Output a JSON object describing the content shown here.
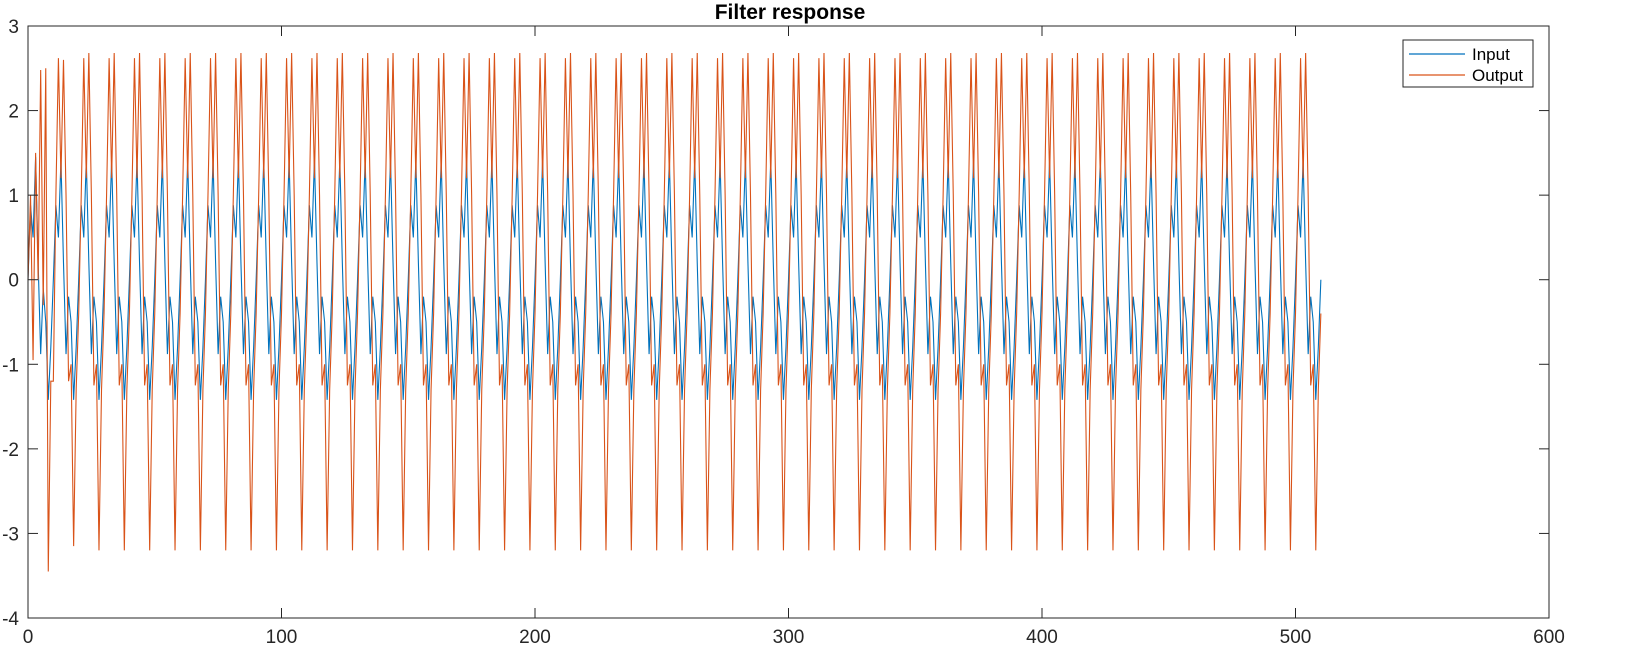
{
  "chart_data": {
    "type": "line",
    "title": "Filter response",
    "xlabel": "",
    "ylabel": "",
    "xlim": [
      0,
      600
    ],
    "ylim": [
      -4,
      3
    ],
    "xticks": [
      0,
      100,
      200,
      300,
      400,
      500,
      600
    ],
    "yticks": [
      -4,
      -3,
      -2,
      -1,
      0,
      1,
      2,
      3
    ],
    "xtick_labels": [
      "0",
      "100",
      "200",
      "300",
      "400",
      "500",
      "600"
    ],
    "ytick_labels": [
      "-4",
      "-3",
      "-2",
      "-1",
      "0",
      "1",
      "2",
      "3"
    ],
    "grid": false,
    "legend_position": "top-right",
    "period": 10,
    "n_samples": 511,
    "series": [
      {
        "name": "Input",
        "color": "#0072BD",
        "transient": [
          [
            0,
            0
          ],
          [
            1,
            0.88
          ],
          [
            2,
            0.5
          ],
          [
            3,
            1.45
          ],
          [
            4,
            0.2
          ],
          [
            5,
            -0.88
          ],
          [
            6,
            -0.1
          ],
          [
            7,
            -0.5
          ],
          [
            8,
            -1.42
          ],
          [
            9,
            -0.8
          ]
        ],
        "cycle": [
          0,
          0.88,
          0.5,
          1.42,
          0.2,
          -0.88,
          -0.2,
          -0.5,
          -1.42,
          -0.8
        ]
      },
      {
        "name": "Output",
        "color": "#D95319",
        "transient": [
          [
            0,
            0
          ],
          [
            1,
            1.0
          ],
          [
            2,
            -0.95
          ],
          [
            3,
            1.5
          ],
          [
            4,
            0.0
          ],
          [
            5,
            2.48
          ],
          [
            6,
            -0.3
          ],
          [
            7,
            2.5
          ],
          [
            8,
            -3.45
          ],
          [
            9,
            -1.2
          ],
          [
            10,
            -1.2
          ],
          [
            11,
            1.0
          ],
          [
            12,
            2.62
          ],
          [
            13,
            1.2
          ],
          [
            14,
            2.6
          ],
          [
            15,
            1.0
          ],
          [
            16,
            -1.2
          ],
          [
            17,
            -1.0
          ],
          [
            18,
            -3.15
          ],
          [
            19,
            -1.3
          ]
        ],
        "cycle": [
          -0.4,
          1.0,
          2.62,
          1.2,
          2.68,
          1.0,
          -1.25,
          -1.0,
          -3.2,
          -1.3
        ]
      }
    ]
  }
}
